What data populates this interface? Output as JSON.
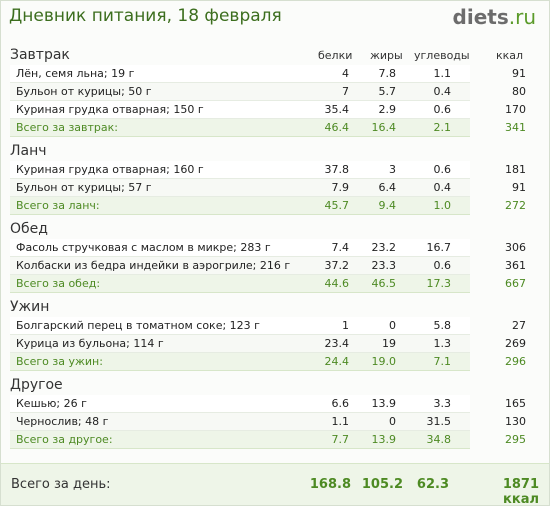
{
  "header": {
    "title": "Дневник питания, 18 февраля",
    "logo_main": "diets",
    "logo_suffix": ".ru"
  },
  "columns": [
    "белки",
    "жиры",
    "углеводы",
    "ккал"
  ],
  "sections": [
    {
      "name": "Завтрак",
      "items": [
        {
          "name": "Лён, семя льна; 19 г",
          "protein": "4",
          "fat": "7.8",
          "carbs": "1.1",
          "kcal": "91"
        },
        {
          "name": "Бульон от курицы; 50 г",
          "protein": "7",
          "fat": "5.7",
          "carbs": "0.4",
          "kcal": "80"
        },
        {
          "name": "Куриная грудка отварная; 150 г",
          "protein": "35.4",
          "fat": "2.9",
          "carbs": "0.6",
          "kcal": "170"
        }
      ],
      "total": {
        "label": "Всего за завтрак:",
        "protein": "46.4",
        "fat": "16.4",
        "carbs": "2.1",
        "kcal": "341"
      }
    },
    {
      "name": "Ланч",
      "items": [
        {
          "name": "Куриная грудка отварная; 160 г",
          "protein": "37.8",
          "fat": "3",
          "carbs": "0.6",
          "kcal": "181"
        },
        {
          "name": "Бульон от курицы; 57 г",
          "protein": "7.9",
          "fat": "6.4",
          "carbs": "0.4",
          "kcal": "91"
        }
      ],
      "total": {
        "label": "Всего за ланч:",
        "protein": "45.7",
        "fat": "9.4",
        "carbs": "1.0",
        "kcal": "272"
      }
    },
    {
      "name": "Обед",
      "items": [
        {
          "name": "Фасоль стручковая с маслом в микре; 283 г",
          "protein": "7.4",
          "fat": "23.2",
          "carbs": "16.7",
          "kcal": "306"
        },
        {
          "name": "Колбаски из бедра индейки в аэрогриле; 216 г",
          "protein": "37.2",
          "fat": "23.3",
          "carbs": "0.6",
          "kcal": "361"
        }
      ],
      "total": {
        "label": "Всего за обед:",
        "protein": "44.6",
        "fat": "46.5",
        "carbs": "17.3",
        "kcal": "667"
      }
    },
    {
      "name": "Ужин",
      "items": [
        {
          "name": "Болгарский перец в томатном соке; 123 г",
          "protein": "1",
          "fat": "0",
          "carbs": "5.8",
          "kcal": "27"
        },
        {
          "name": "Курица из бульона; 114 г",
          "protein": "23.4",
          "fat": "19",
          "carbs": "1.3",
          "kcal": "269"
        }
      ],
      "total": {
        "label": "Всего за ужин:",
        "protein": "24.4",
        "fat": "19.0",
        "carbs": "7.1",
        "kcal": "296"
      }
    },
    {
      "name": "Другое",
      "items": [
        {
          "name": "Кешью; 26 г",
          "protein": "6.6",
          "fat": "13.9",
          "carbs": "3.3",
          "kcal": "165"
        },
        {
          "name": "Чернослив; 48 г",
          "protein": "1.1",
          "fat": "0",
          "carbs": "31.5",
          "kcal": "130"
        }
      ],
      "total": {
        "label": "Всего за другое:",
        "protein": "7.7",
        "fat": "13.9",
        "carbs": "34.8",
        "kcal": "295"
      }
    }
  ],
  "day_total": {
    "label": "Всего за день:",
    "protein": "168.8",
    "fat": "105.2",
    "carbs": "62.3",
    "kcal": "1871 ккал"
  }
}
